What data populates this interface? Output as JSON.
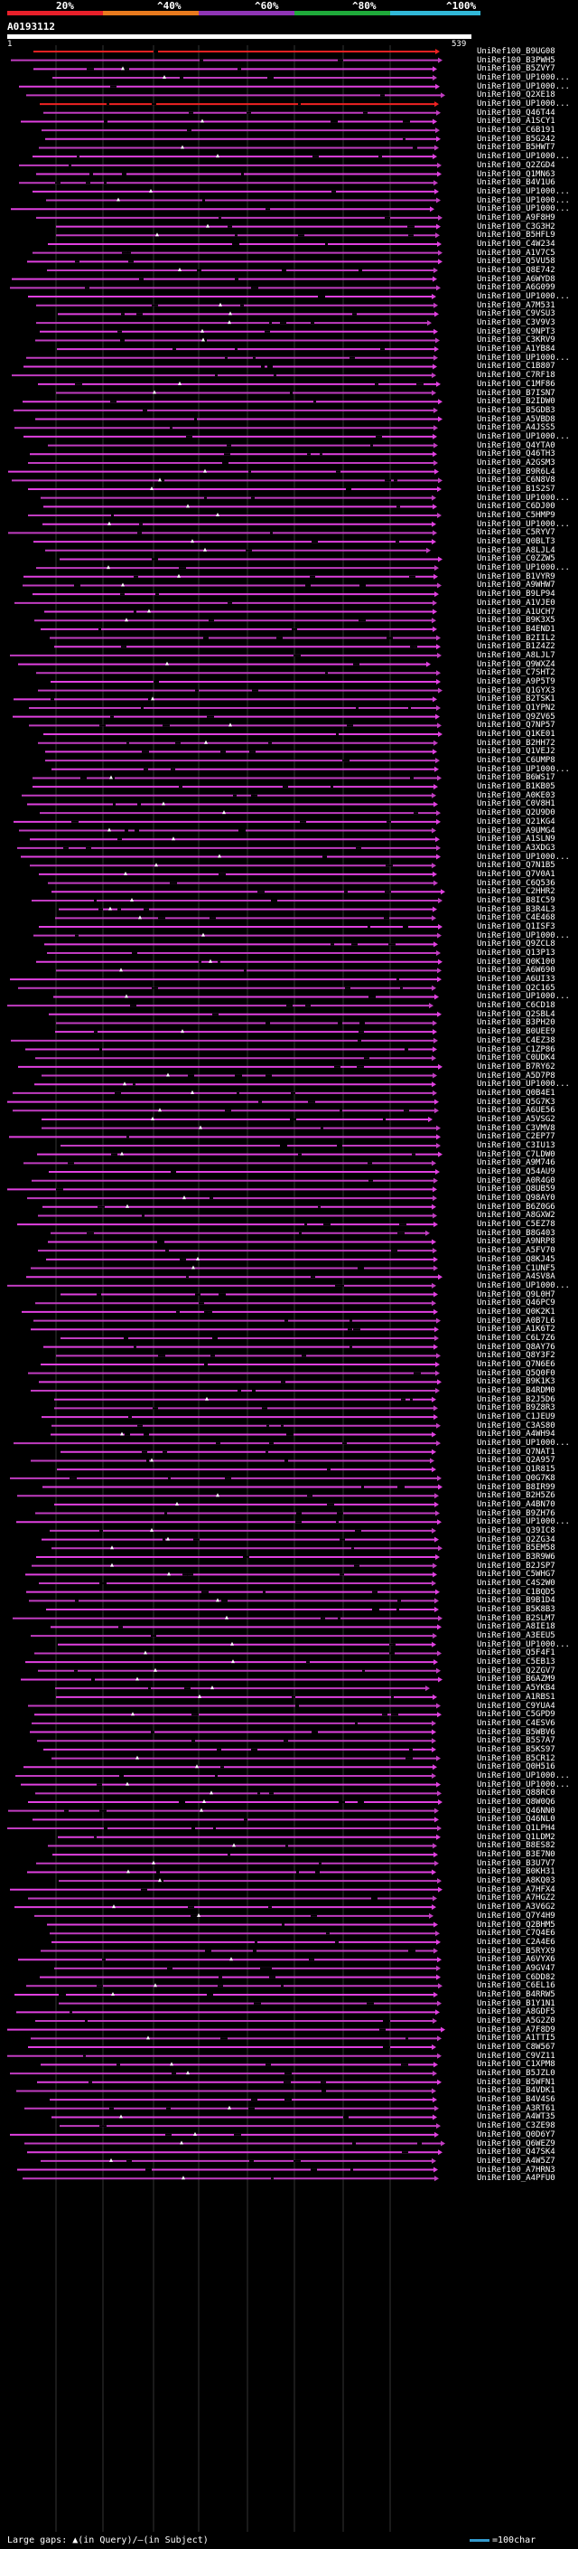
{
  "query": {
    "name": "A0193112",
    "start": "1",
    "end": "539"
  },
  "scale": {
    "ticks": [
      "20%",
      "^40%",
      "^60%",
      "^80%",
      "^100%"
    ],
    "colors": [
      "#e8202a",
      "#e87a1e",
      "#8f35b5",
      "#1faa3a",
      "#31b8d8"
    ]
  },
  "legend": {
    "text": "Large gaps: ▲(in Query)/—(in Subject)",
    "scale_text": "=100char"
  },
  "colors": {
    "hit_line": "#c03cc0",
    "hit_line_bright": "#e040e0",
    "red_hit": "#ee2222",
    "gap_mark": "#000000",
    "gridline": "#333333"
  },
  "hits": [
    "UniRef100_B9UG08",
    "UniRef100_B3PWH5",
    "UniRef100_B5ZVY7",
    "UniRef100_UP1000...",
    "UniRef100_UP1000...",
    "UniRef100_Q2XE18",
    "UniRef100_UP1000...",
    "UniRef100_Q46T44",
    "UniRef100_A1SCY1",
    "UniRef100_C6B191",
    "UniRef100_B5G242",
    "UniRef100_B5HWT7",
    "UniRef100_UP1000...",
    "UniRef100_Q2ZGD4",
    "UniRef100_Q1MN63",
    "UniRef100_B4V1U6",
    "UniRef100_UP1000...",
    "UniRef100_UP1000...",
    "UniRef100_UP1000...",
    "UniRef100_A9F8H9",
    "UniRef100_C3G3H2",
    "UniRef100_B5HFL9",
    "UniRef100_C4W234",
    "UniRef100_A1V7C5",
    "UniRef100_Q5VU58",
    "UniRef100_Q8E742",
    "UniRef100_A6WYD8",
    "UniRef100_A6G099",
    "UniRef100_UP1000...",
    "UniRef100_A7M531",
    "UniRef100_C9VSU3",
    "UniRef100_C3V9V3",
    "UniRef100_C9NPT3",
    "UniRef100_C3KRV9",
    "UniRef100_A1YB84",
    "UniRef100_UP1000...",
    "UniRef100_C1B807",
    "UniRef100_C7RF18",
    "UniRef100_C1MF86",
    "UniRef100_B7ISN7",
    "UniRef100_B2IDW0",
    "UniRef100_B5GDB3",
    "UniRef100_A5VBD8",
    "UniRef100_A4JSS5",
    "UniRef100_UP1000...",
    "UniRef100_Q4YTA0",
    "UniRef100_Q46TH3",
    "UniRef100_A2GSM3",
    "UniRef100_B9R6L4",
    "UniRef100_C6N8V8",
    "UniRef100_B1S2S7",
    "UniRef100_UP1000...",
    "UniRef100_C6DJ00",
    "UniRef100_C5HMP9",
    "UniRef100_UP1000...",
    "UniRef100_C5RYV7",
    "UniRef100_Q0BLT3",
    "UniRef100_A8LJL4",
    "UniRef100_C0ZZW5",
    "UniRef100_UP1000...",
    "UniRef100_B1VYR9",
    "UniRef100_A9WHW7",
    "UniRef100_B9LP94",
    "UniRef100_A1VJE0",
    "UniRef100_A1UCH7",
    "UniRef100_B9K3X5",
    "UniRef100_B4END1",
    "UniRef100_B2IIL2",
    "UniRef100_B1Z4Z2",
    "UniRef100_A8LJL7",
    "UniRef100_Q9WXZ4",
    "UniRef100_C7SHT2",
    "UniRef100_A9P5T9",
    "UniRef100_Q1GYX3",
    "UniRef100_B2TSK1",
    "UniRef100_Q1YPN2",
    "UniRef100_Q9ZV65",
    "UniRef100_Q7NP57",
    "UniRef100_Q1KE01",
    "UniRef100_B2HH72",
    "UniRef100_Q1VEJ2",
    "UniRef100_C6UMP8",
    "UniRef100_UP1000...",
    "UniRef100_B6WS17",
    "UniRef100_B1KB05",
    "UniRef100_A0KE03",
    "UniRef100_C0V8H1",
    "UniRef100_Q2U9D0",
    "UniRef100_Q21KG4",
    "UniRef100_A9UMG4",
    "UniRef100_A1SLN9",
    "UniRef100_A3XDG3",
    "UniRef100_UP1000...",
    "UniRef100_Q7N1B5",
    "UniRef100_Q7V0A1",
    "UniRef100_C6Q536",
    "UniRef100_C2HHR2",
    "UniRef100_B8IC59",
    "UniRef100_B3R4L3",
    "UniRef100_C4E468",
    "UniRef100_Q1ISF3",
    "UniRef100_UP1000...",
    "UniRef100_Q9ZCL8",
    "UniRef100_Q13P13",
    "UniRef100_Q0K100",
    "UniRef100_A6W690",
    "UniRef100_A6UI33",
    "UniRef100_Q2C165",
    "UniRef100_UP1000...",
    "UniRef100_C6CD18",
    "UniRef100_Q2SBL4",
    "UniRef100_B3PH20",
    "UniRef100_B0UEE9",
    "UniRef100_C4EZ38",
    "UniRef100_C1ZP86",
    "UniRef100_C0UDK4",
    "UniRef100_B7RY62",
    "UniRef100_A5D7P8",
    "UniRef100_UP1000...",
    "UniRef100_Q0B4E1",
    "UniRef100_Q5G7K3",
    "UniRef100_A6UE56",
    "UniRef100_A5VSG2",
    "UniRef100_C3VMV8",
    "UniRef100_C2EP77",
    "UniRef100_C3IU13",
    "UniRef100_C7LDW0",
    "UniRef100_A9M746",
    "UniRef100_Q54AU9",
    "UniRef100_A0R4G0",
    "UniRef100_Q8UB59",
    "UniRef100_Q98AY0",
    "UniRef100_B6Z0G6",
    "UniRef100_A8GXW2",
    "UniRef100_C5EZ78",
    "UniRef100_B8G403",
    "UniRef100_A9NRP8",
    "UniRef100_A5FV70",
    "UniRef100_Q8KJ45",
    "UniRef100_C1UNF5",
    "UniRef100_A4SV8A",
    "UniRef100_UP1000...",
    "UniRef100_Q9L0H7",
    "UniRef100_Q46PC9",
    "UniRef100_Q0K2K1",
    "UniRef100_A0B7L6",
    "UniRef100_A1K6T2",
    "UniRef100_C6L7Z6",
    "UniRef100_Q8AY76",
    "UniRef100_Q8Y3F2",
    "UniRef100_Q7N6E6",
    "UniRef100_Q5Q0F0",
    "UniRef100_B9K1K3",
    "UniRef100_B4RDM0",
    "UniRef100_B2J5D6",
    "UniRef100_B9Z8R3",
    "UniRef100_C1JEU9",
    "UniRef100_C3AS80",
    "UniRef100_A4WH94",
    "UniRef100_UP1000...",
    "UniRef100_Q7NAT1",
    "UniRef100_Q2A957",
    "UniRef100_Q1R815",
    "UniRef100_Q0G7K8",
    "UniRef100_B8IR99",
    "UniRef100_B2H5Z6",
    "UniRef100_A4BN70",
    "UniRef100_B9ZH76",
    "UniRef100_UP1000...",
    "UniRef100_Q39IC8",
    "UniRef100_Q2ZG34",
    "UniRef100_B5EM58",
    "UniRef100_B3R9W6",
    "UniRef100_B2JSP7",
    "UniRef100_C5WHG7",
    "UniRef100_C4S2W0",
    "UniRef100_C1BQD5",
    "UniRef100_B9B1D4",
    "UniRef100_B5K8B3",
    "UniRef100_B2SLM7",
    "UniRef100_A8IE18",
    "UniRef100_A3EEU5",
    "UniRef100_UP1000...",
    "UniRef100_Q5F4F1",
    "UniRef100_C5EB13",
    "UniRef100_Q2ZGV7",
    "UniRef100_B6AZM9",
    "UniRef100_A5YKB4",
    "UniRef100_A1RBS1",
    "UniRef100_C9YUA4",
    "UniRef100_C5GPD9",
    "UniRef100_C4ESV6",
    "UniRef100_B5WBV6",
    "UniRef100_B5S7A7",
    "UniRef100_B5KS97",
    "UniRef100_B5CR12",
    "UniRef100_Q0H516",
    "UniRef100_UP1000...",
    "UniRef100_UP1000...",
    "UniRef100_Q88RC0",
    "UniRef100_Q8W0Q6",
    "UniRef100_Q46NN0",
    "UniRef100_Q46NL0",
    "UniRef100_Q1LPH4",
    "UniRef100_Q1LDM2",
    "UniRef100_B8ES82",
    "UniRef100_B3E7N0",
    "UniRef100_B3U7V7",
    "UniRef100_B0KH31",
    "UniRef100_A8KQ03",
    "UniRef100_A7HFX4",
    "UniRef100_A7HGZ2",
    "UniRef100_A3V6G2",
    "UniRef100_Q7Y4H9",
    "UniRef100_Q2BHM5",
    "UniRef100_C7Q4E6",
    "UniRef100_C2A4E6",
    "UniRef100_B5RYX9",
    "UniRef100_A6VYX6",
    "UniRef100_A9GV47",
    "UniRef100_C6DD82",
    "UniRef100_C6EL16",
    "UniRef100_B4RRW5",
    "UniRef100_B1Y1N1",
    "UniRef100_A8GDF5",
    "UniRef100_A5G2Z0",
    "UniRef100_A7F8D9",
    "UniRef100_A1TTI5",
    "UniRef100_C8W567",
    "UniRef100_C9VZ11",
    "UniRef100_C1XPM8",
    "UniRef100_B5JZL0",
    "UniRef100_B5WFN1",
    "UniRef100_B4VDK1",
    "UniRef100_B4V4S6",
    "UniRef100_A3RT61",
    "UniRef100_A4WT35",
    "UniRef100_C3ZE98",
    "UniRef100_Q0D6Y7",
    "UniRef100_Q6WEZ9",
    "UniRef100_Q47SK4",
    "UniRef100_A4W5Z7",
    "UniRef100_A7HRN3",
    "UniRef100_A4PFU0"
  ]
}
